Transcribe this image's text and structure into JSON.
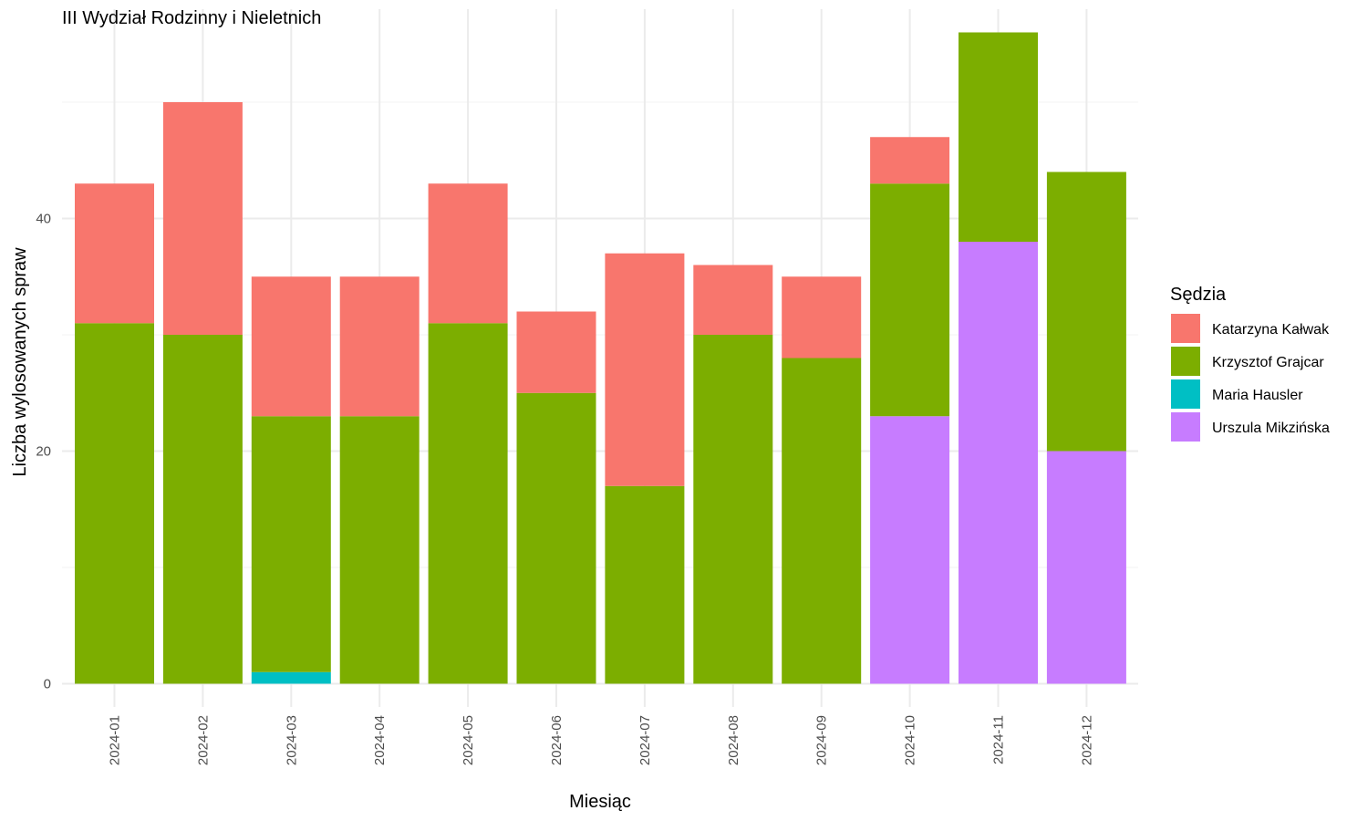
{
  "chart_data": {
    "type": "bar",
    "stacked": true,
    "title": "III Wydział Rodzinny i Nieletnich",
    "xlabel": "Miesiąc",
    "ylabel": "Liczba wylosowanych spraw",
    "ylim": [
      -2,
      58
    ],
    "yticks": [
      0,
      20,
      40
    ],
    "grid": true,
    "legend": {
      "title": "Sędzia",
      "position": "right"
    },
    "categories": [
      "2024-01",
      "2024-02",
      "2024-03",
      "2024-04",
      "2024-05",
      "2024-06",
      "2024-07",
      "2024-08",
      "2024-09",
      "2024-10",
      "2024-11",
      "2024-12"
    ],
    "series": [
      {
        "name": "Urszula Mikzińska",
        "color": "#C77CFF",
        "values": [
          0,
          0,
          0,
          0,
          0,
          0,
          0,
          0,
          0,
          23,
          38,
          20
        ]
      },
      {
        "name": "Maria Hausler",
        "color": "#00BFC4",
        "values": [
          0,
          0,
          1,
          0,
          0,
          0,
          0,
          0,
          0,
          0,
          0,
          0
        ]
      },
      {
        "name": "Krzysztof Grajcar",
        "color": "#7CAE00",
        "values": [
          31,
          30,
          22,
          23,
          31,
          25,
          17,
          30,
          28,
          20,
          18,
          24
        ]
      },
      {
        "name": "Katarzyna Kałwak",
        "color": "#F8766D",
        "values": [
          12,
          20,
          12,
          12,
          12,
          7,
          20,
          6,
          7,
          4,
          0,
          0
        ]
      }
    ],
    "legend_order": [
      "Katarzyna Kałwak",
      "Krzysztof Grajcar",
      "Maria Hausler",
      "Urszula Mikzińska"
    ]
  }
}
